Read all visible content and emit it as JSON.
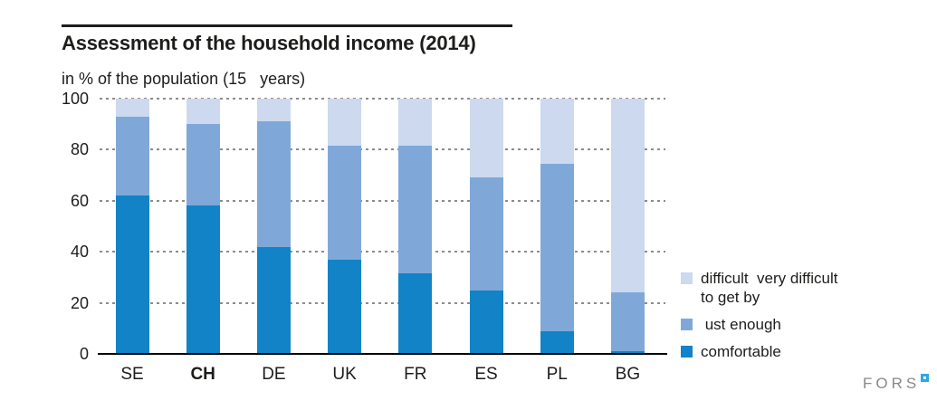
{
  "header": {
    "title": "Assessment of the household income (2014)",
    "subtitle": "in % of the population (15   years)"
  },
  "chart_data": {
    "type": "bar",
    "stacked": true,
    "title": "Assessment of the household income (2014)",
    "subtitle": "in % of the population (15   years)",
    "categories": [
      "SE",
      "CH",
      "DE",
      "UK",
      "FR",
      "ES",
      "PL",
      "BG"
    ],
    "bold_category": "CH",
    "series": [
      {
        "name": "comfortable",
        "color": "#1183c6",
        "values": [
          62,
          58,
          42,
          37,
          31.5,
          25,
          9,
          1
        ]
      },
      {
        "name": "ust enough",
        "color": "#7fa8d9",
        "values": [
          31,
          32,
          49,
          44.5,
          50,
          44,
          65.5,
          23
        ]
      },
      {
        "name": "difficult  very difficult to get by",
        "color": "#ccd9ee",
        "values": [
          7,
          10,
          9,
          18.5,
          18.5,
          31,
          25.5,
          76
        ]
      }
    ],
    "ylim": [
      0,
      100
    ],
    "yticks": [
      0,
      20,
      40,
      60,
      80,
      100
    ],
    "grid": "horizontal-dotted",
    "legend_position": "right"
  },
  "legend": {
    "items": [
      {
        "color": "#ccd9ee",
        "line1": "difficult  very difficult",
        "line2": "to get by"
      },
      {
        "color": "#7fa8d9",
        "line1": " ust enough",
        "line2": ""
      },
      {
        "color": "#1183c6",
        "line1": "comfortable",
        "line2": ""
      }
    ]
  },
  "footer": {
    "logo_text": "FORS"
  },
  "colors": {
    "comfortable": "#1183c6",
    "just_enough": "#7fa8d9",
    "difficult": "#ccd9ee",
    "gridline": "#8c8c8c",
    "axis": "#000000",
    "text": "#1d1d1b",
    "logo_gray": "#87898b",
    "logo_blue": "#2ba9e0"
  }
}
